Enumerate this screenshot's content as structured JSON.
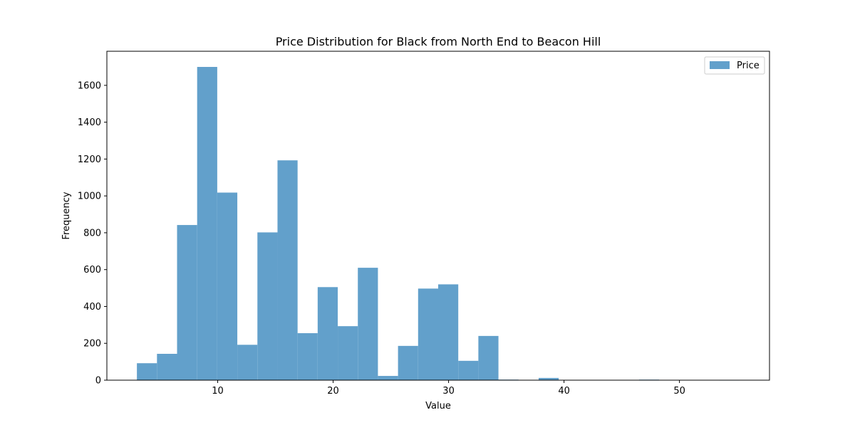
{
  "chart_data": {
    "type": "bar",
    "title": "Price Distribution for Black from North End to Beacon Hill",
    "xlabel": "Value",
    "ylabel": "Frequency",
    "xlim": [
      0.4,
      57.8
    ],
    "ylim": [
      0,
      1785
    ],
    "x_ticks": [
      10,
      20,
      30,
      40,
      50
    ],
    "y_ticks": [
      0,
      200,
      400,
      600,
      800,
      1000,
      1200,
      1400,
      1600
    ],
    "bar_color": "#62a0cb",
    "legend": {
      "label": "Price",
      "position": "top-right"
    },
    "bins": [
      {
        "start": 3.0,
        "end": 4.74,
        "count": 92
      },
      {
        "start": 4.74,
        "end": 6.48,
        "count": 143
      },
      {
        "start": 6.48,
        "end": 8.22,
        "count": 842
      },
      {
        "start": 8.22,
        "end": 9.96,
        "count": 1700
      },
      {
        "start": 9.96,
        "end": 11.7,
        "count": 1018
      },
      {
        "start": 11.7,
        "end": 13.44,
        "count": 192
      },
      {
        "start": 13.44,
        "end": 15.18,
        "count": 802
      },
      {
        "start": 15.18,
        "end": 16.92,
        "count": 1193
      },
      {
        "start": 16.92,
        "end": 18.66,
        "count": 255
      },
      {
        "start": 18.66,
        "end": 20.4,
        "count": 505
      },
      {
        "start": 20.4,
        "end": 22.14,
        "count": 293
      },
      {
        "start": 22.14,
        "end": 23.88,
        "count": 610
      },
      {
        "start": 23.88,
        "end": 25.62,
        "count": 23
      },
      {
        "start": 25.62,
        "end": 27.36,
        "count": 186
      },
      {
        "start": 27.36,
        "end": 29.1,
        "count": 497
      },
      {
        "start": 29.1,
        "end": 30.84,
        "count": 520
      },
      {
        "start": 30.84,
        "end": 32.58,
        "count": 105
      },
      {
        "start": 32.58,
        "end": 34.32,
        "count": 240
      },
      {
        "start": 34.32,
        "end": 36.06,
        "count": 3
      },
      {
        "start": 36.06,
        "end": 37.8,
        "count": 0
      },
      {
        "start": 37.8,
        "end": 39.54,
        "count": 12
      },
      {
        "start": 39.54,
        "end": 41.28,
        "count": 0
      },
      {
        "start": 41.28,
        "end": 43.02,
        "count": 0
      },
      {
        "start": 43.02,
        "end": 44.76,
        "count": 0
      },
      {
        "start": 44.76,
        "end": 46.5,
        "count": 0
      },
      {
        "start": 46.5,
        "end": 48.24,
        "count": 3
      },
      {
        "start": 48.24,
        "end": 49.98,
        "count": 0
      },
      {
        "start": 49.98,
        "end": 51.72,
        "count": 0
      },
      {
        "start": 51.72,
        "end": 53.46,
        "count": 0
      },
      {
        "start": 53.46,
        "end": 55.2,
        "count": 1
      }
    ]
  }
}
